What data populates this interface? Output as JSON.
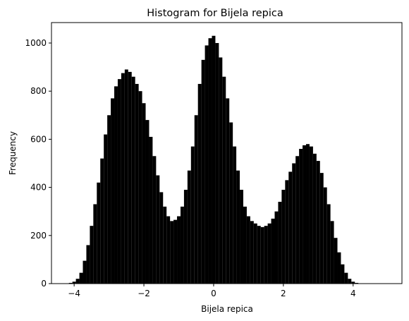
{
  "colors": {
    "bars": "#000000",
    "axes": "#000000",
    "background": "#ffffff"
  },
  "chart_data": {
    "type": "bar",
    "title": "Histogram for Bijela repica",
    "xlabel": "Bijela repica",
    "ylabel": "Frequency",
    "xlim": [
      -4.65,
      5.4
    ],
    "ylim": [
      0,
      1085
    ],
    "xticks": [
      -4,
      -2,
      0,
      2,
      4
    ],
    "yticks": [
      0,
      200,
      400,
      600,
      800,
      1000
    ],
    "grid": false,
    "legend": "none",
    "bin_width": 0.05,
    "series": [
      {
        "x": [
          -4.3,
          -4.2,
          -4.1,
          -4.0,
          -3.9,
          -3.8,
          -3.7,
          -3.6,
          -3.5,
          -3.4,
          -3.3,
          -3.2,
          -3.1,
          -3.0,
          -2.9,
          -2.8,
          -2.7,
          -2.6,
          -2.5,
          -2.4,
          -2.3,
          -2.2,
          -2.1,
          -2.0,
          -1.9,
          -1.8,
          -1.7,
          -1.6,
          -1.5,
          -1.4,
          -1.3,
          -1.2,
          -1.1,
          -1.0,
          -0.9,
          -0.8,
          -0.7,
          -0.6,
          -0.5,
          -0.4,
          -0.3,
          -0.2,
          -0.1,
          0.0,
          0.1,
          0.2,
          0.3,
          0.4,
          0.5,
          0.6,
          0.7,
          0.8,
          0.9,
          1.0,
          1.1,
          1.2,
          1.3,
          1.4,
          1.5,
          1.6,
          1.7,
          1.8,
          1.9,
          2.0,
          2.1,
          2.2,
          2.3,
          2.4,
          2.5,
          2.6,
          2.7,
          2.8,
          2.9,
          3.0,
          3.1,
          3.2,
          3.3,
          3.4,
          3.5,
          3.6,
          3.7,
          3.8,
          3.9,
          4.0,
          4.1,
          4.2,
          4.3,
          4.4,
          4.5,
          4.6,
          4.7,
          4.8,
          4.9,
          5.0
        ],
        "y": [
          0,
          1,
          3,
          8,
          20,
          45,
          95,
          160,
          240,
          330,
          420,
          520,
          620,
          700,
          770,
          820,
          850,
          875,
          890,
          880,
          860,
          830,
          800,
          750,
          680,
          610,
          530,
          450,
          380,
          320,
          280,
          260,
          265,
          280,
          320,
          390,
          470,
          570,
          700,
          830,
          930,
          990,
          1020,
          1030,
          1000,
          940,
          860,
          770,
          670,
          570,
          470,
          390,
          320,
          280,
          260,
          250,
          240,
          235,
          240,
          250,
          270,
          300,
          340,
          390,
          430,
          465,
          500,
          530,
          560,
          575,
          580,
          570,
          540,
          510,
          460,
          400,
          330,
          260,
          190,
          130,
          80,
          45,
          20,
          8,
          3,
          1,
          0,
          0,
          0,
          0,
          0,
          0,
          0,
          0
        ]
      }
    ]
  }
}
